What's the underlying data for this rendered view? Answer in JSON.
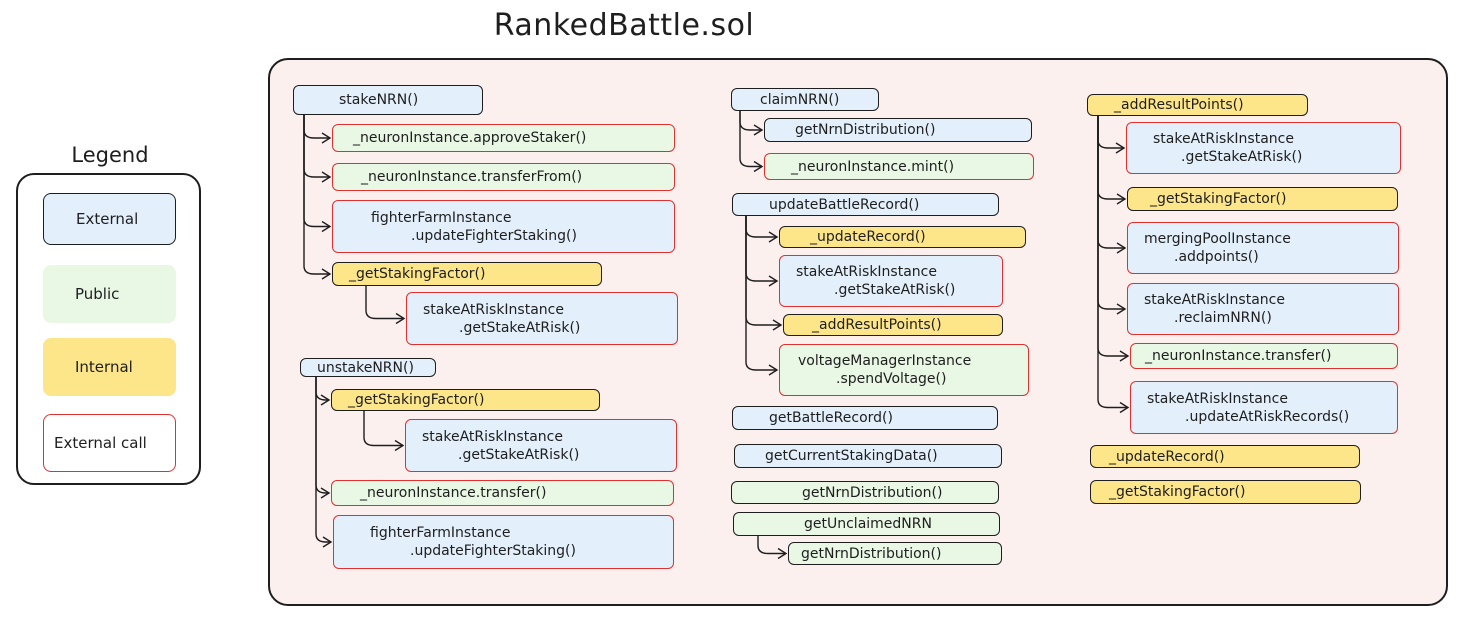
{
  "title": "RankedBattle.sol",
  "legend": {
    "title": "Legend",
    "items": [
      {
        "label": "External",
        "kind": "leg-ext"
      },
      {
        "label": "Public",
        "kind": "leg-pub"
      },
      {
        "label": "Internal",
        "kind": "leg-int"
      },
      {
        "label": "External call",
        "kind": "leg-red"
      }
    ]
  },
  "colors": {
    "external": "#e3f0fb",
    "public": "#e9f7e5",
    "internal": "#fde68a",
    "external_call_border": "#e03131",
    "panel": "#fcf0ee"
  },
  "nodes": [
    {
      "id": "stakeNRN",
      "lines": [
        "stakeNRN()"
      ],
      "kind": "ext"
    },
    {
      "id": "s1",
      "lines": [
        "_neuronInstance.approveStaker()"
      ],
      "kind": "pubred"
    },
    {
      "id": "s2",
      "lines": [
        "_neuronInstance.transferFrom()"
      ],
      "kind": "pubred"
    },
    {
      "id": "s3",
      "lines": [
        "fighterFarmInstance",
        ".updateFighterStaking()"
      ],
      "kind": "extred"
    },
    {
      "id": "s4",
      "lines": [
        "_getStakingFactor()"
      ],
      "kind": "int"
    },
    {
      "id": "s5",
      "lines": [
        "stakeAtRiskInstance",
        ".getStakeAtRisk()"
      ],
      "kind": "extred"
    },
    {
      "id": "unstakeNRN",
      "lines": [
        "unstakeNRN()"
      ],
      "kind": "ext"
    },
    {
      "id": "u1",
      "lines": [
        "_getStakingFactor()"
      ],
      "kind": "int"
    },
    {
      "id": "u2",
      "lines": [
        "stakeAtRiskInstance",
        ".getStakeAtRisk()"
      ],
      "kind": "extred"
    },
    {
      "id": "u3",
      "lines": [
        "_neuronInstance.transfer()"
      ],
      "kind": "pubred"
    },
    {
      "id": "u4",
      "lines": [
        "fighterFarmInstance",
        ".updateFighterStaking()"
      ],
      "kind": "extred"
    },
    {
      "id": "claimNRN",
      "lines": [
        "claimNRN()"
      ],
      "kind": "ext"
    },
    {
      "id": "c1",
      "lines": [
        "getNrnDistribution()"
      ],
      "kind": "ext"
    },
    {
      "id": "c2",
      "lines": [
        "_neuronInstance.mint()"
      ],
      "kind": "pubred"
    },
    {
      "id": "ubr",
      "lines": [
        "updateBattleRecord()"
      ],
      "kind": "ext"
    },
    {
      "id": "b1",
      "lines": [
        "_updateRecord()"
      ],
      "kind": "int"
    },
    {
      "id": "b2",
      "lines": [
        "stakeAtRiskInstance",
        ".getStakeAtRisk()"
      ],
      "kind": "extred"
    },
    {
      "id": "b3",
      "lines": [
        "_addResultPoints()"
      ],
      "kind": "int"
    },
    {
      "id": "b4",
      "lines": [
        "voltageManagerInstance",
        ".spendVoltage()"
      ],
      "kind": "pubred"
    },
    {
      "id": "gbr",
      "lines": [
        "getBattleRecord()"
      ],
      "kind": "ext"
    },
    {
      "id": "gcsd",
      "lines": [
        "getCurrentStakingData()"
      ],
      "kind": "ext"
    },
    {
      "id": "gnd",
      "lines": [
        "getNrnDistribution()"
      ],
      "kind": "pub"
    },
    {
      "id": "gun",
      "lines": [
        "getUnclaimedNRN"
      ],
      "kind": "pub"
    },
    {
      "id": "gun1",
      "lines": [
        "getNrnDistribution()"
      ],
      "kind": "pub"
    },
    {
      "id": "arp",
      "lines": [
        "_addResultPoints()"
      ],
      "kind": "int"
    },
    {
      "id": "a1",
      "lines": [
        "stakeAtRiskInstance",
        ".getStakeAtRisk()"
      ],
      "kind": "extred"
    },
    {
      "id": "a2",
      "lines": [
        "_getStakingFactor()"
      ],
      "kind": "int"
    },
    {
      "id": "a3",
      "lines": [
        "mergingPoolInstance",
        ".addpoints()"
      ],
      "kind": "extred"
    },
    {
      "id": "a4",
      "lines": [
        "stakeAtRiskInstance",
        ".reclaimNRN()"
      ],
      "kind": "extred"
    },
    {
      "id": "a5",
      "lines": [
        "_neuronInstance.transfer()"
      ],
      "kind": "pubred"
    },
    {
      "id": "a6",
      "lines": [
        "stakeAtRiskInstance",
        ".updateAtRiskRecords()"
      ],
      "kind": "extred"
    },
    {
      "id": "ur",
      "lines": [
        "_updateRecord()"
      ],
      "kind": "int"
    },
    {
      "id": "gsf",
      "lines": [
        "_getStakingFactor()"
      ],
      "kind": "int"
    }
  ]
}
